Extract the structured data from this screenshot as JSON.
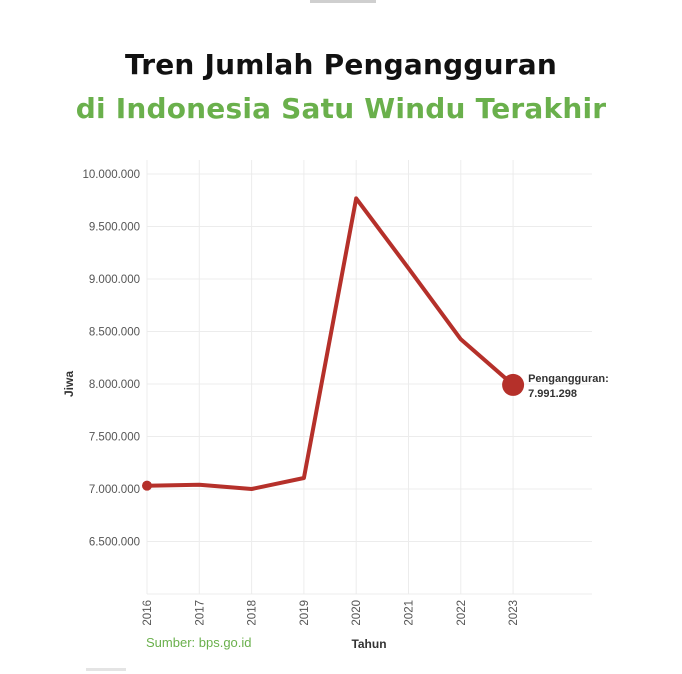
{
  "header": {
    "title_line1": "Tren Jumlah Pengangguran",
    "title_line2": "di Indonesia Satu Windu Terakhir"
  },
  "footer": {
    "source": "Sumber: bps.go.id"
  },
  "colors": {
    "line": "#b5302a",
    "grid": "#ececec",
    "accent_green": "#6ab04c"
  },
  "chart_data": {
    "type": "line",
    "xlabel": "Tahun",
    "ylabel": "Jiwa",
    "x": [
      "2016",
      "2017",
      "2018",
      "2019",
      "2020",
      "2021",
      "2022",
      "2023"
    ],
    "series": [
      {
        "values": [
          7031775,
          7040000,
          7000000,
          7104424,
          9767754,
          9102052,
          8425931,
          7991298
        ]
      }
    ],
    "ylim": [
      6000000,
      10000000
    ],
    "yticks": [
      {
        "value": 10000000,
        "label": "10.000.000"
      },
      {
        "value": 9500000,
        "label": "9.500.000"
      },
      {
        "value": 9000000,
        "label": "9.000.000"
      },
      {
        "value": 8500000,
        "label": "8.500.000"
      },
      {
        "value": 8000000,
        "label": "8.000.000"
      },
      {
        "value": 7500000,
        "label": "7.500.000"
      },
      {
        "value": 7000000,
        "label": "7.000.000"
      },
      {
        "value": 6500000,
        "label": "6.500.000"
      }
    ],
    "grid": true,
    "annotation": {
      "index": 7,
      "line1": "Pengangguran:",
      "line2": "7.991.298"
    }
  }
}
